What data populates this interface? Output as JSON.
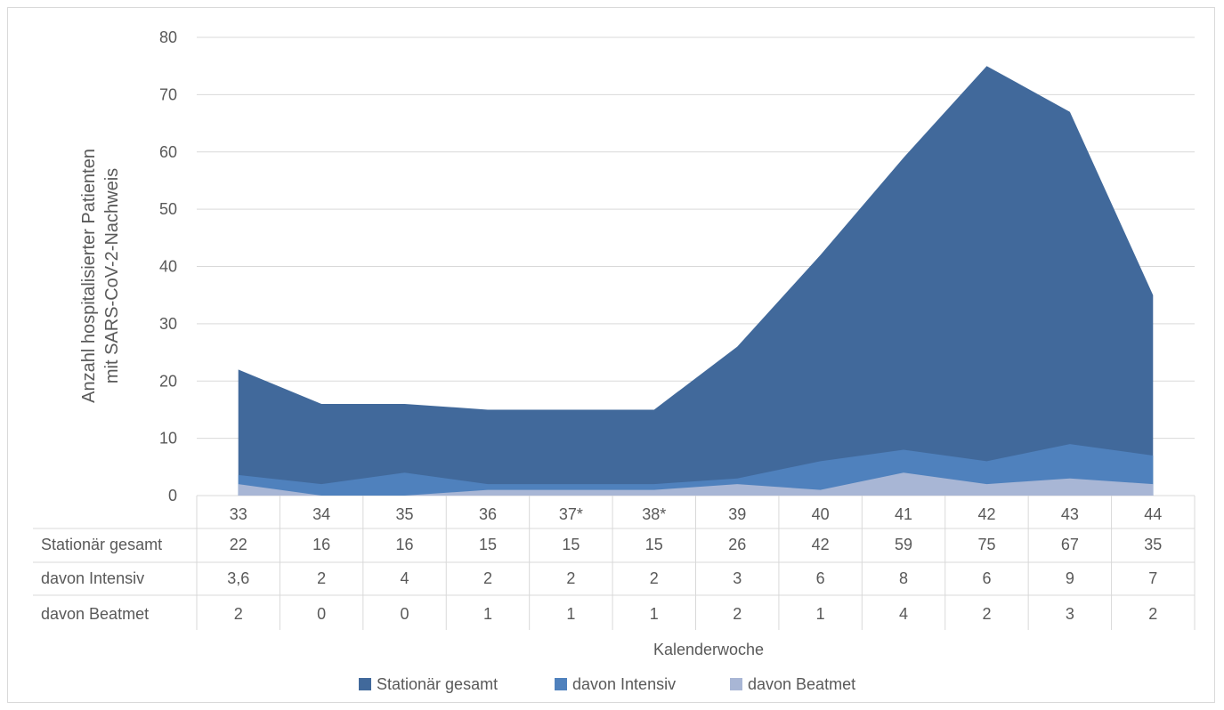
{
  "chart_data": {
    "type": "area",
    "ylabel_lines": [
      "Anzahl hospitalisierter Patienten",
      "mit SARS-CoV-2-Nachweis"
    ],
    "xlabel": "Kalenderwoche",
    "ylim": [
      0,
      80
    ],
    "yticks": [
      0,
      10,
      20,
      30,
      40,
      50,
      60,
      70,
      80
    ],
    "grid": true,
    "legend_position": "bottom",
    "categories": [
      "33",
      "34",
      "35",
      "36",
      "37*",
      "38*",
      "39",
      "40",
      "41",
      "42",
      "43",
      "44"
    ],
    "series": [
      {
        "name": "Stationär gesamt",
        "color": "#41699b",
        "values": [
          22,
          16,
          16,
          15,
          15,
          15,
          26,
          42,
          59,
          75,
          67,
          35
        ],
        "labels": [
          "22",
          "16",
          "16",
          "15",
          "15",
          "15",
          "26",
          "42",
          "59",
          "75",
          "67",
          "35"
        ]
      },
      {
        "name": "davon Intensiv",
        "color": "#4f81bd",
        "values": [
          3.6,
          2,
          4,
          2,
          2,
          2,
          3,
          6,
          8,
          6,
          9,
          7
        ],
        "labels": [
          "3,6",
          "2",
          "4",
          "2",
          "2",
          "2",
          "3",
          "6",
          "8",
          "6",
          "9",
          "7"
        ]
      },
      {
        "name": "davon Beatmet",
        "color": "#a8b6d5",
        "values": [
          2,
          0,
          0,
          1,
          1,
          1,
          2,
          1,
          4,
          2,
          3,
          2
        ],
        "labels": [
          "2",
          "0",
          "0",
          "1",
          "1",
          "1",
          "2",
          "1",
          "4",
          "2",
          "3",
          "2"
        ]
      }
    ]
  }
}
